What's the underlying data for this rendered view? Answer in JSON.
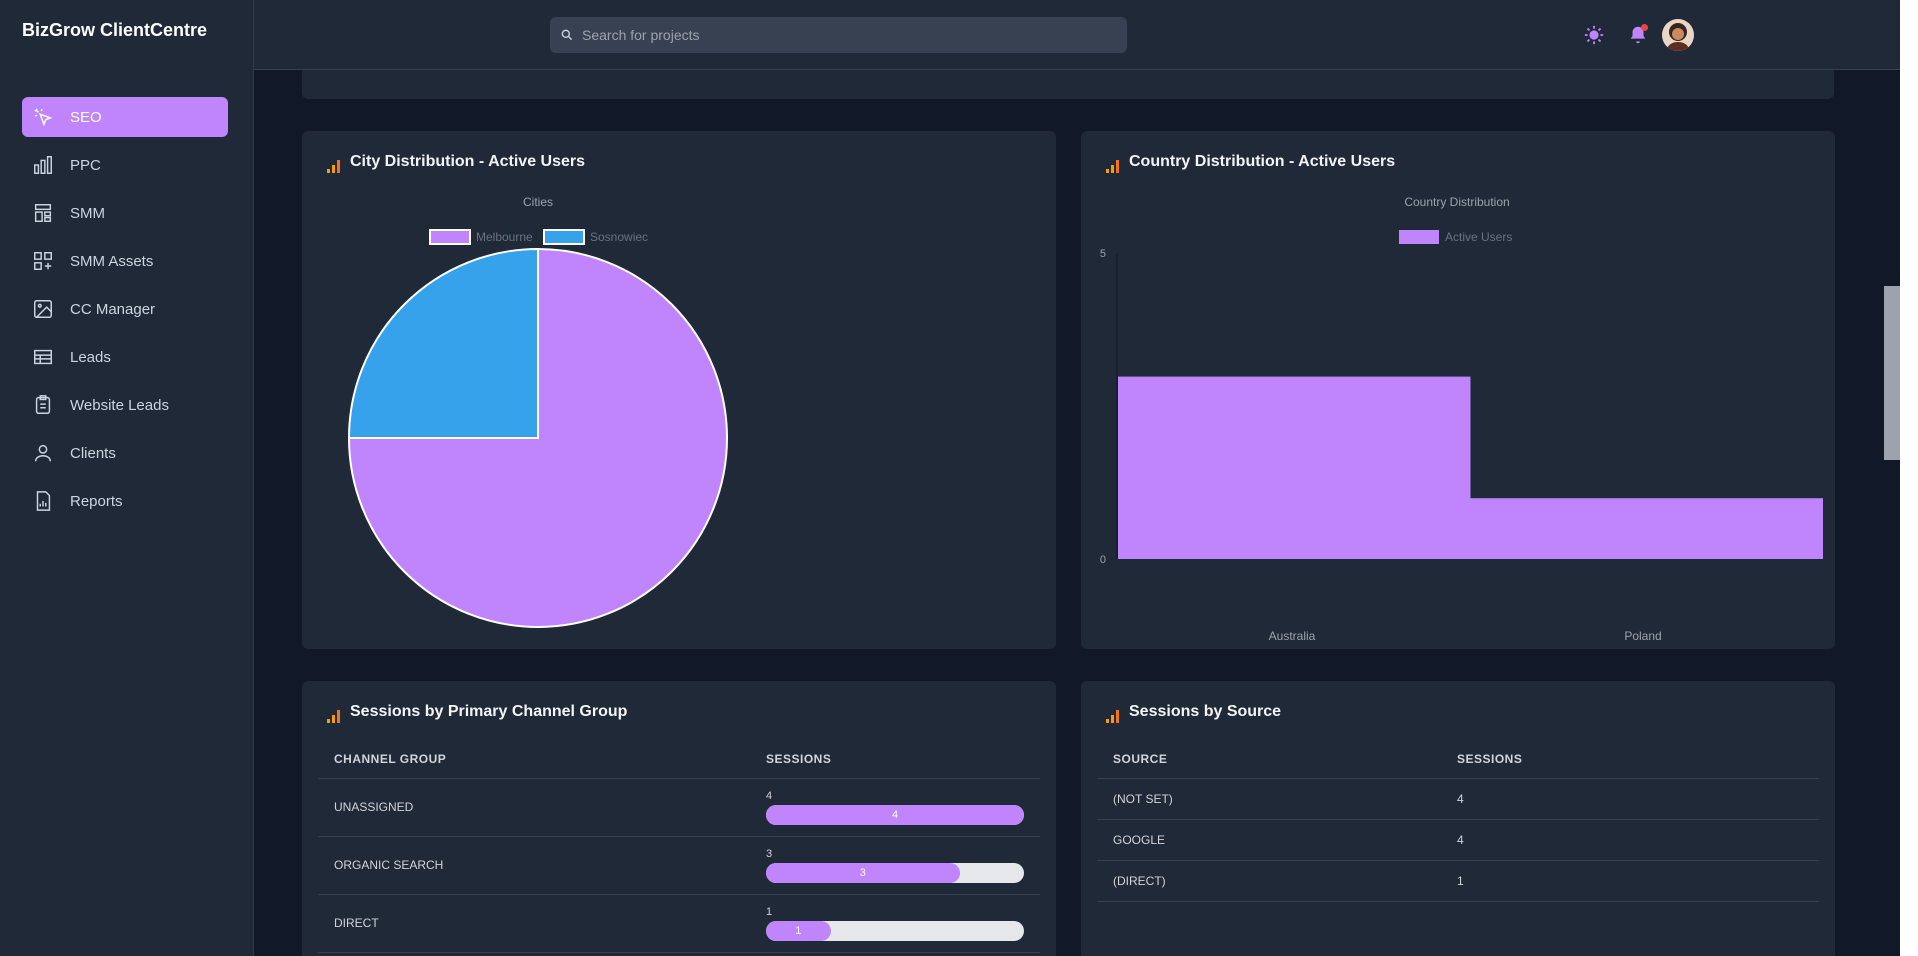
{
  "brand": "BizGrow ClientCentre",
  "search": {
    "placeholder": "Search for projects"
  },
  "sidebar": {
    "items": [
      {
        "label": "SEO",
        "icon": "cursor-click-icon",
        "active": true
      },
      {
        "label": "PPC",
        "icon": "bar-chart-icon"
      },
      {
        "label": "SMM",
        "icon": "layout-icon"
      },
      {
        "label": "SMM Assets",
        "icon": "apps-add-icon"
      },
      {
        "label": "CC Manager",
        "icon": "image-icon"
      },
      {
        "label": "Leads",
        "icon": "table-icon"
      },
      {
        "label": "Website Leads",
        "icon": "clipboard-icon"
      },
      {
        "label": "Clients",
        "icon": "user-icon"
      },
      {
        "label": "Reports",
        "icon": "document-chart-icon"
      }
    ]
  },
  "topbar": {
    "theme_icon": "sun-icon",
    "bell_icon": "bell-icon",
    "avatar": "avatar"
  },
  "colors": {
    "accent": "#c084fc",
    "blue": "#36a2eb",
    "card": "#1f2937",
    "bg": "#111827"
  },
  "city_card": {
    "title": "City Distribution - Active Users",
    "chart_data": {
      "type": "pie",
      "title": "Cities",
      "categories": [
        "Melbourne",
        "Sosnowiec"
      ],
      "values": [
        3,
        1
      ],
      "colors": [
        "#c084fc",
        "#36a2eb"
      ],
      "legend": "top"
    }
  },
  "country_card": {
    "title": "Country Distribution - Active Users",
    "chart_data": {
      "type": "bar",
      "title": "Country Distribution",
      "categories": [
        "Australia",
        "Poland"
      ],
      "series": [
        {
          "name": "Active Users",
          "values": [
            3,
            1
          ]
        }
      ],
      "ylim": [
        0,
        5
      ],
      "yticks": [
        "5",
        "0"
      ],
      "legend": "top"
    }
  },
  "channel_card": {
    "title": "Sessions by Primary Channel Group",
    "headers": [
      "CHANNEL GROUP",
      "SESSIONS"
    ],
    "max": 4,
    "rows": [
      {
        "name": "UNASSIGNED",
        "sessions": 4,
        "label": "4"
      },
      {
        "name": "ORGANIC SEARCH",
        "sessions": 3,
        "label": "3"
      },
      {
        "name": "DIRECT",
        "sessions": 1,
        "label": "1"
      }
    ]
  },
  "source_card": {
    "title": "Sessions by Source",
    "headers": [
      "SOURCE",
      "SESSIONS"
    ],
    "rows": [
      {
        "name": "(NOT SET)",
        "sessions": "4"
      },
      {
        "name": "GOOGLE",
        "sessions": "4"
      },
      {
        "name": "(DIRECT)",
        "sessions": "1"
      }
    ]
  }
}
